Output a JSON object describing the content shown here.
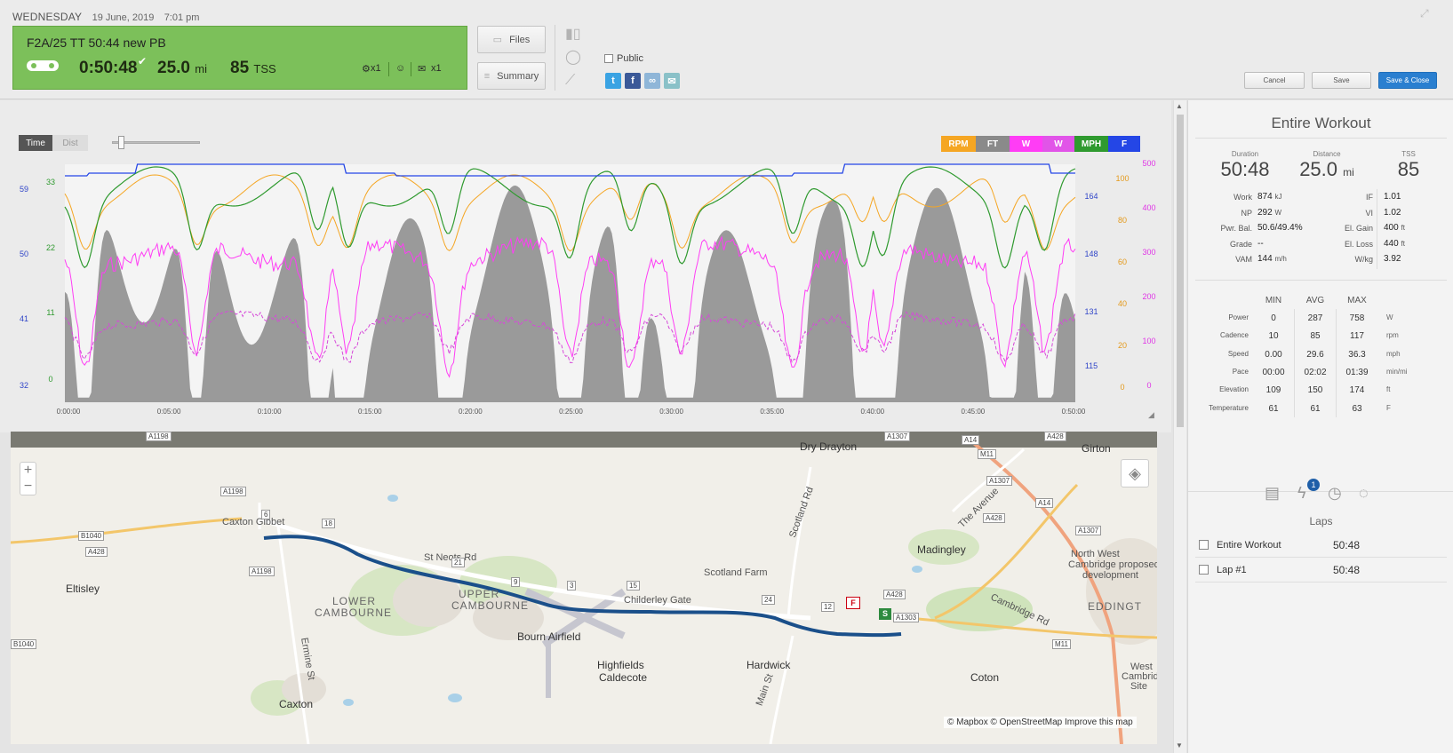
{
  "header": {
    "day": "WEDNESDAY",
    "date": "19 June, 2019",
    "time": "7:01 pm",
    "workout_title": "F2A/25 TT 50:44 new PB",
    "duration": "0:50:48",
    "distance": "25.0",
    "distance_unit": "mi",
    "tss": "85",
    "tss_unit": "TSS",
    "count1": "x1",
    "count2": "x1",
    "files_label": "Files",
    "summary_label": "Summary",
    "public_label": "Public",
    "cancel_label": "Cancel",
    "save_label": "Save",
    "save_close_label": "Save & Close",
    "accent": "#7cc05a"
  },
  "chart": {
    "toggle_time": "Time",
    "toggle_dist": "Dist",
    "legend": [
      {
        "label": "RPM",
        "color": "#f5a623"
      },
      {
        "label": "FT",
        "color": "#8a8a8a"
      },
      {
        "label": "W",
        "color": "#ff3df5"
      },
      {
        "label": "W",
        "color": "#e154e8"
      },
      {
        "label": "MPH",
        "color": "#2f9a2f"
      },
      {
        "label": "F",
        "color": "#2446e6"
      }
    ]
  },
  "chart_data": {
    "type": "line",
    "x_ticks": [
      "0:00:00",
      "0:05:00",
      "0:10:00",
      "0:15:00",
      "0:20:00",
      "0:25:00",
      "0:30:00",
      "0:35:00",
      "0:40:00",
      "0:45:00",
      "0:50:00"
    ],
    "axis_left_blue": [
      "59",
      "50",
      "41",
      "32"
    ],
    "axis_left_green": [
      "33",
      "22",
      "11",
      "0"
    ],
    "axis_right_blue": [
      "164",
      "148",
      "131",
      "115"
    ],
    "axis_right_orange": [
      "100",
      "80",
      "60",
      "40",
      "20",
      "0"
    ],
    "axis_right_magenta": [
      "500",
      "400",
      "300",
      "200",
      "100",
      "0"
    ],
    "series": [
      {
        "name": "FT",
        "color": "#8a8a8a"
      },
      {
        "name": "RPM",
        "color": "#f5a623"
      },
      {
        "name": "MPH",
        "color": "#2f9a2f"
      },
      {
        "name": "W",
        "color": "#ff3df5"
      },
      {
        "name": "W",
        "color": "#e154e8"
      },
      {
        "name": "F",
        "color": "#2446e6"
      }
    ]
  },
  "map": {
    "labels": [
      {
        "text": "Dry Drayton",
        "cls": "town"
      },
      {
        "text": "Girton",
        "cls": "town"
      },
      {
        "text": "Madingley",
        "cls": "town"
      },
      {
        "text": "Eltisley",
        "cls": "town"
      },
      {
        "text": "LOWER",
        "cls": "big"
      },
      {
        "text": "CAMBOURNE",
        "cls": "big"
      },
      {
        "text": "UPPER",
        "cls": "big"
      },
      {
        "text": "CAMBOURNE",
        "cls": "big"
      },
      {
        "text": "Bourn Airfield",
        "cls": "town"
      },
      {
        "text": "Highfields",
        "cls": "town"
      },
      {
        "text": "Caldecote",
        "cls": "town"
      },
      {
        "text": "Hardwick",
        "cls": "town"
      },
      {
        "text": "Coton",
        "cls": "town"
      },
      {
        "text": "Caxton",
        "cls": "town"
      },
      {
        "text": "Scotland Farm",
        "cls": ""
      },
      {
        "text": "North West",
        "cls": ""
      },
      {
        "text": "Cambridge proposed",
        "cls": ""
      },
      {
        "text": "development",
        "cls": ""
      },
      {
        "text": "EDDINGT",
        "cls": "big"
      },
      {
        "text": "West",
        "cls": ""
      },
      {
        "text": "Cambridge",
        "cls": ""
      },
      {
        "text": "Site",
        "cls": ""
      },
      {
        "text": "Caxton Gibbet",
        "cls": ""
      },
      {
        "text": "St Neots Rd",
        "cls": ""
      },
      {
        "text": "Childerley Gate",
        "cls": ""
      },
      {
        "text": "Scotland Rd",
        "cls": ""
      },
      {
        "text": "The Avenue",
        "cls": ""
      },
      {
        "text": "Cambridge Rd",
        "cls": ""
      },
      {
        "text": "Ermine St",
        "cls": ""
      },
      {
        "text": "Main St",
        "cls": ""
      }
    ],
    "shields": [
      "A1198",
      "A1198",
      "A1198",
      "B1040",
      "A428",
      "B1040",
      "A1307",
      "A14",
      "M11",
      "A1307",
      "A14",
      "A428",
      "A1307",
      "A428",
      "A1303",
      "M11",
      "A428"
    ],
    "markers": [
      "6",
      "18",
      "21",
      "9",
      "3",
      "15",
      "24",
      "12"
    ],
    "finish": "F",
    "start": "S",
    "attribution": "© Mapbox © OpenStreetMap Improve this map"
  },
  "summary": {
    "title": "Entire Workout",
    "duration_label": "Duration",
    "duration": "50:48",
    "distance_label": "Distance",
    "distance": "25.0",
    "distance_unit": "mi",
    "tss_label": "TSS",
    "tss": "85",
    "left_stats": [
      {
        "label": "Work",
        "value": "874",
        "unit": "kJ"
      },
      {
        "label": "NP",
        "value": "292",
        "unit": "W"
      },
      {
        "label": "Pwr. Bal.",
        "value": "50.6/49.4%",
        "unit": ""
      },
      {
        "label": "Grade",
        "value": "--",
        "unit": ""
      },
      {
        "label": "VAM",
        "value": "144",
        "unit": "m/h"
      }
    ],
    "right_stats": [
      {
        "label": "IF",
        "value": "1.01",
        "unit": ""
      },
      {
        "label": "VI",
        "value": "1.02",
        "unit": ""
      },
      {
        "label": "El. Gain",
        "value": "400",
        "unit": "ft"
      },
      {
        "label": "El. Loss",
        "value": "440",
        "unit": "ft"
      },
      {
        "label": "W/kg",
        "value": "3.92",
        "unit": ""
      }
    ],
    "mm_headers": [
      "MIN",
      "AVG",
      "MAX"
    ],
    "mm_rows": [
      {
        "label": "Power",
        "min": "0",
        "avg": "287",
        "max": "758",
        "unit": "W"
      },
      {
        "label": "Cadence",
        "min": "10",
        "avg": "85",
        "max": "117",
        "unit": "rpm"
      },
      {
        "label": "Speed",
        "min": "0.00",
        "avg": "29.6",
        "max": "36.3",
        "unit": "mph"
      },
      {
        "label": "Pace",
        "min": "00:00",
        "avg": "02:02",
        "max": "01:39",
        "unit": "min/mi"
      },
      {
        "label": "Elevation",
        "min": "109",
        "avg": "150",
        "max": "174",
        "unit": "ft"
      },
      {
        "label": "Temperature",
        "min": "61",
        "avg": "61",
        "max": "63",
        "unit": "F"
      }
    ],
    "laps_badge": "1",
    "laps_label": "Laps",
    "laps": [
      {
        "name": "Entire Workout",
        "time": "50:48"
      },
      {
        "name": "Lap #1",
        "time": "50:48"
      }
    ]
  }
}
